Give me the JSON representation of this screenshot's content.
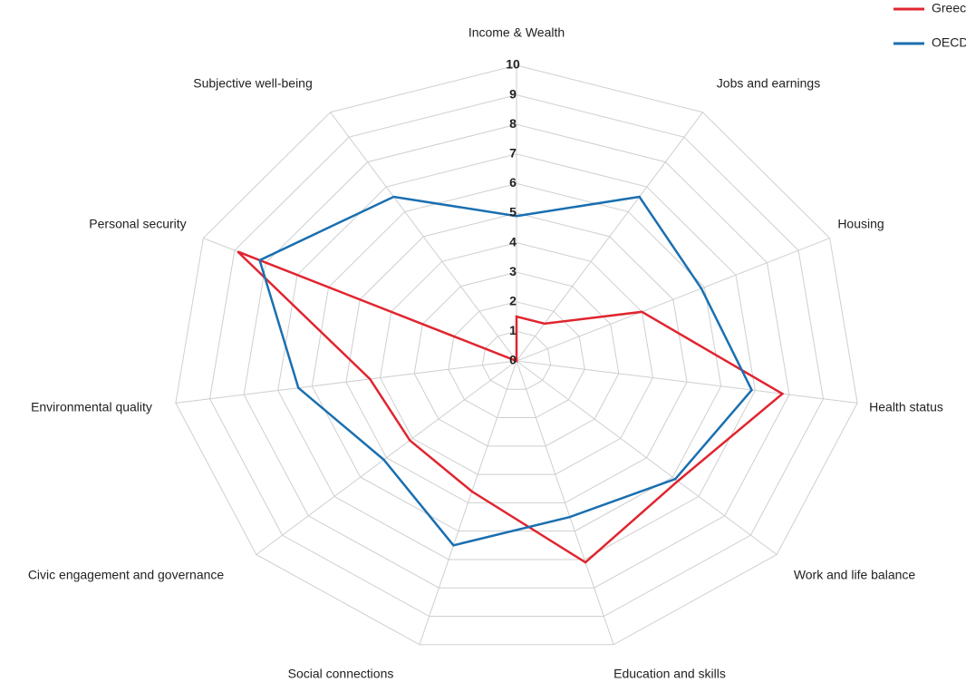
{
  "chart_data": {
    "type": "radar",
    "categories": [
      "Income & Wealth",
      "Jobs and earnings",
      "Housing",
      "Health status",
      "Work and life balance",
      "Education and skills",
      "Social connections",
      "Civic engagement and governance",
      "Environmental quality",
      "Personal security",
      "Subjective well-being"
    ],
    "series": [
      {
        "name": "Greece",
        "color": "#e0252f",
        "values": [
          1.5,
          1.5,
          4.0,
          7.8,
          6.2,
          7.1,
          4.6,
          4.1,
          4.3,
          8.9,
          0
        ]
      },
      {
        "name": "OECD",
        "color": "#1a6fb0",
        "values": [
          4.9,
          6.6,
          5.9,
          6.9,
          6.1,
          5.5,
          6.5,
          5.1,
          6.4,
          8.2,
          6.6
        ]
      }
    ],
    "ylim": [
      0,
      10
    ],
    "yticks": [
      0,
      1,
      2,
      3,
      4,
      5,
      6,
      7,
      8,
      9,
      10
    ],
    "grid": true,
    "legend": "top-right"
  }
}
